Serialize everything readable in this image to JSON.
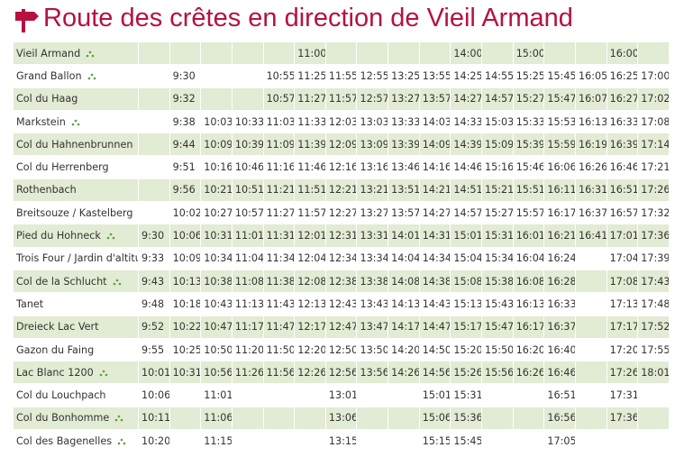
{
  "title": "Route des crêtes en direction de Vieil Armand",
  "table": {
    "rows": [
      {
        "stop": "Vieil Armand",
        "icon": true,
        "times": [
          null,
          null,
          null,
          null,
          null,
          "11:00",
          null,
          null,
          null,
          null,
          "14:00",
          null,
          "15:00",
          null,
          null,
          "16:00",
          null
        ]
      },
      {
        "stop": "Grand Ballon",
        "icon": true,
        "times": [
          null,
          "9:30",
          null,
          null,
          "10:55",
          "11:25",
          "11:55",
          "12:55",
          "13:25",
          "13:55",
          "14:25",
          "14:55",
          "15:25",
          "15:45",
          "16:05",
          "16:25",
          "17:00"
        ]
      },
      {
        "stop": "Col du Haag",
        "icon": false,
        "times": [
          null,
          "9:32",
          null,
          null,
          "10:57",
          "11:27",
          "11:57",
          "12:57",
          "13:27",
          "13:57",
          "14:27",
          "14:57",
          "15:27",
          "15:47",
          "16:07",
          "16:27",
          "17:02"
        ]
      },
      {
        "stop": "Markstein",
        "icon": true,
        "times": [
          null,
          "9:38",
          "10:03",
          "10:33",
          "11:03",
          "11:33",
          "12:03",
          "13:03",
          "13:33",
          "14:03",
          "14:33",
          "15:03",
          "15:33",
          "15:53",
          "16:13",
          "16:33",
          "17:08"
        ]
      },
      {
        "stop": "Col du Hahnenbrunnen",
        "icon": false,
        "times": [
          null,
          "9:44",
          "10:09",
          "10:39",
          "11:09",
          "11:39",
          "12:09",
          "13:09",
          "13:39",
          "14:09",
          "14:39",
          "15:09",
          "15:39",
          "15:59",
          "16:19",
          "16:39",
          "17:14"
        ]
      },
      {
        "stop": "Col du Herrenberg",
        "icon": false,
        "times": [
          null,
          "9:51",
          "10:16",
          "10:46",
          "11:16",
          "11:46",
          "12:16",
          "13:16",
          "13:46",
          "14:16",
          "14:46",
          "15:16",
          "15:46",
          "16:06",
          "16:26",
          "16:46",
          "17:21"
        ]
      },
      {
        "stop": "Rothenbach",
        "icon": false,
        "times": [
          null,
          "9:56",
          "10:21",
          "10:51",
          "11:21",
          "11:51",
          "12:21",
          "13:21",
          "13:51",
          "14:21",
          "14:51",
          "15:21",
          "15:51",
          "16:11",
          "16:31",
          "16:51",
          "17:26"
        ]
      },
      {
        "stop": "Breitsouze / Kastelberg",
        "icon": false,
        "times": [
          null,
          "10:02",
          "10:27",
          "10:57",
          "11:27",
          "11:57",
          "12:27",
          "13:27",
          "13:57",
          "14:27",
          "14:57",
          "15:27",
          "15:57",
          "16:17",
          "16:37",
          "16:57",
          "17:32"
        ]
      },
      {
        "stop": "Pied du Hohneck",
        "icon": true,
        "times": [
          "9:30",
          "10:06",
          "10:31",
          "11:01",
          "11:31",
          "12:01",
          "12:31",
          "13:31",
          "14:01",
          "14:31",
          "15:01",
          "15:31",
          "16:01",
          "16:21",
          "16:41",
          "17:01",
          "17:36"
        ]
      },
      {
        "stop": "Trois Four / Jardin d'altitude",
        "icon": false,
        "times": [
          "9:33",
          "10:09",
          "10:34",
          "11:04",
          "11:34",
          "12:04",
          "12:34",
          "13:34",
          "14:04",
          "14:34",
          "15:04",
          "15:34",
          "16:04",
          "16:24",
          null,
          "17:04",
          "17:39"
        ]
      },
      {
        "stop": "Col de la Schlucht",
        "icon": true,
        "times": [
          "9:43",
          "10:13",
          "10:38",
          "11:08",
          "11:38",
          "12:08",
          "12:38",
          "13:38",
          "14:08",
          "14:38",
          "15:08",
          "15:38",
          "16:08",
          "16:28",
          null,
          "17:08",
          "17:43"
        ]
      },
      {
        "stop": "Tanet",
        "icon": false,
        "times": [
          "9:48",
          "10:18",
          "10:43",
          "11:13",
          "11:43",
          "12:13",
          "12:43",
          "13:43",
          "14:13",
          "14:43",
          "15:13",
          "15:43",
          "16:13",
          "16:33",
          null,
          "17:13",
          "17:48"
        ]
      },
      {
        "stop": "Dreieck Lac Vert",
        "icon": false,
        "times": [
          "9:52",
          "10:22",
          "10:47",
          "11:17",
          "11:47",
          "12:17",
          "12:47",
          "13:47",
          "14:17",
          "14:47",
          "15:17",
          "15:47",
          "16:17",
          "16:37",
          null,
          "17:17",
          "17:52"
        ]
      },
      {
        "stop": "Gazon du Faing",
        "icon": false,
        "times": [
          "9:55",
          "10:25",
          "10:50",
          "11:20",
          "11:50",
          "12:20",
          "12:50",
          "13:50",
          "14:20",
          "14:50",
          "15:20",
          "15:50",
          "16:20",
          "16:40",
          null,
          "17:20",
          "17:55"
        ]
      },
      {
        "stop": "Lac Blanc 1200",
        "icon": true,
        "times": [
          "10:01",
          "10:31",
          "10:56",
          "11:26",
          "11:56",
          "12:26",
          "12:56",
          "13:56",
          "14:26",
          "14:56",
          "15:26",
          "15:56",
          "16:26",
          "16:46",
          null,
          "17:26",
          "18:01"
        ]
      },
      {
        "stop": "Col du Louchpach",
        "icon": false,
        "times": [
          "10:06",
          null,
          "11:01",
          null,
          null,
          null,
          "13:01",
          null,
          null,
          "15:01",
          "15:31",
          null,
          null,
          "16:51",
          null,
          "17:31",
          null
        ]
      },
      {
        "stop": "Col du Bonhomme",
        "icon": true,
        "times": [
          "10:11",
          null,
          "11:06",
          null,
          null,
          null,
          "13:06",
          null,
          null,
          "15:06",
          "15:36",
          null,
          null,
          "16:56",
          null,
          "17:36",
          null
        ]
      },
      {
        "stop": "Col des Bagenelles",
        "icon": true,
        "times": [
          "10:20",
          null,
          "11:15",
          null,
          null,
          null,
          "13:15",
          null,
          null,
          "15:15",
          "15:45",
          null,
          null,
          "17:05",
          null,
          null,
          null
        ]
      }
    ]
  }
}
